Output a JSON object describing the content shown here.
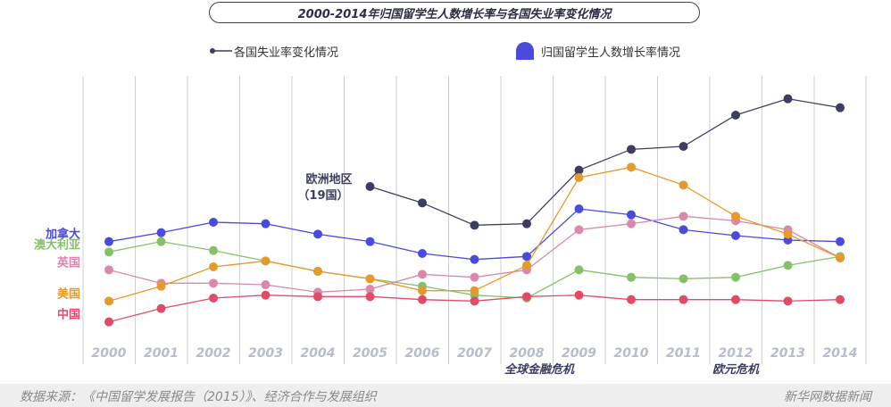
{
  "title": "2000-2014年归国留学生人数增长率与各国失业率变化情况",
  "legend": {
    "unemployment": "各国失业率变化情况",
    "returnees": "归国留学生人数增长率情况"
  },
  "chart_data": {
    "type": "line",
    "x": [
      "2000",
      "2001",
      "2002",
      "2003",
      "2004",
      "2005",
      "2006",
      "2007",
      "2008",
      "2009",
      "2010",
      "2011",
      "2012",
      "2013",
      "2014"
    ],
    "ylim": [
      0,
      18
    ],
    "grid": "vertical",
    "legend_position": "top",
    "series": [
      {
        "name": "欧洲地区（19国）",
        "color": "#3d3d62",
        "values": [
          null,
          null,
          null,
          null,
          null,
          10.5,
          9.4,
          7.9,
          8.0,
          11.6,
          13.0,
          13.2,
          15.3,
          16.4,
          15.8
        ]
      },
      {
        "name": "加拿大",
        "color": "#4a4adc",
        "values": [
          6.8,
          7.4,
          8.1,
          8.0,
          7.3,
          6.8,
          6.0,
          5.6,
          5.8,
          9.0,
          8.6,
          7.6,
          7.2,
          6.9,
          6.8
        ]
      },
      {
        "name": "澳大利亚",
        "color": "#86c16a",
        "values": [
          6.1,
          6.8,
          6.2,
          5.5,
          4.8,
          4.3,
          3.8,
          3.2,
          3.0,
          4.9,
          4.4,
          4.3,
          4.4,
          5.2,
          5.8
        ]
      },
      {
        "name": "英国",
        "color": "#dc87ad",
        "values": [
          4.9,
          4.0,
          4.0,
          3.9,
          3.4,
          3.6,
          4.6,
          4.4,
          4.9,
          7.6,
          8.0,
          8.5,
          8.2,
          7.6,
          5.7
        ]
      },
      {
        "name": "美国",
        "color": "#e59a2b",
        "values": [
          2.8,
          3.8,
          5.1,
          5.5,
          4.8,
          4.3,
          3.5,
          3.5,
          5.2,
          11.1,
          11.8,
          10.6,
          8.5,
          7.3,
          5.7
        ]
      },
      {
        "name": "中国",
        "color": "#e04b67",
        "values": [
          1.4,
          2.3,
          3.0,
          3.2,
          3.1,
          3.1,
          2.9,
          2.8,
          3.1,
          3.2,
          2.9,
          2.9,
          2.9,
          2.8,
          2.9
        ]
      }
    ],
    "event_labels": [
      {
        "x": "2008",
        "text": "全球金融危机"
      },
      {
        "x": "2012",
        "text": "欧元危机"
      }
    ]
  },
  "footer": {
    "source": "数据来源：《中国留学发展报告（2015）》、经济合作与发展组织",
    "brand": "新华网数据新闻"
  }
}
